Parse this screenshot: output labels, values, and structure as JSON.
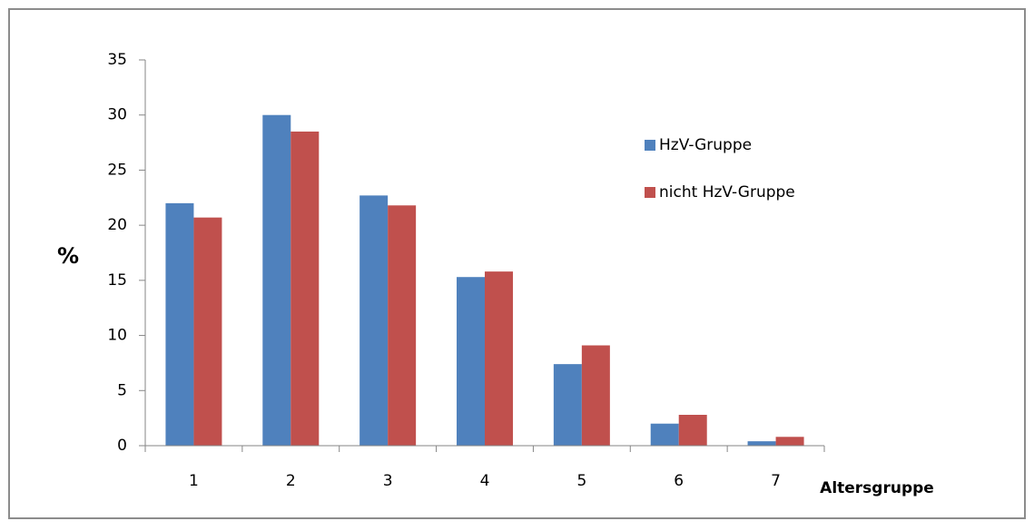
{
  "chart_data": {
    "type": "bar",
    "categories": [
      "1",
      "2",
      "3",
      "4",
      "5",
      "6",
      "7"
    ],
    "series": [
      {
        "name": "HzV-Gruppe",
        "color": "#4f81bd",
        "values": [
          22,
          30,
          22.7,
          15.3,
          7.4,
          2.0,
          0.4
        ]
      },
      {
        "name": "nicht HzV-Gruppe",
        "color": "#c0504d",
        "values": [
          20.7,
          28.5,
          21.8,
          15.8,
          9.1,
          2.8,
          0.8
        ]
      }
    ],
    "ylim": [
      0,
      35
    ],
    "yticks": [
      0,
      5,
      10,
      15,
      20,
      25,
      30,
      35
    ],
    "ylabel": "%",
    "xlabel": "Altersgruppe",
    "grid": false,
    "legend": "right"
  }
}
